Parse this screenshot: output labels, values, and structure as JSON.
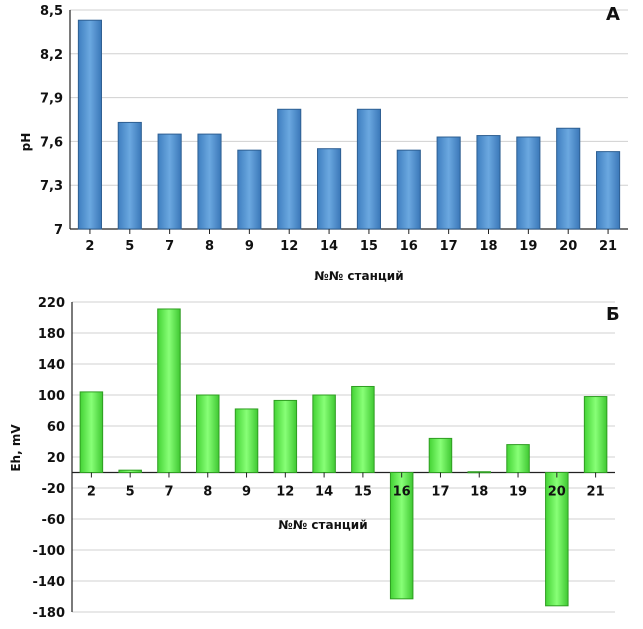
{
  "chart_data": [
    {
      "type": "bar",
      "panel": "A",
      "xlabel": "№№ станций",
      "ylabel": "pH",
      "ylim": [
        7,
        8.5
      ],
      "yticks": [
        "7",
        "7,3",
        "7,6",
        "7,9",
        "8,2",
        "8,5"
      ],
      "categories": [
        "2",
        "5",
        "7",
        "8",
        "9",
        "12",
        "14",
        "15",
        "16",
        "17",
        "18",
        "19",
        "20",
        "21"
      ],
      "values": [
        8.43,
        7.73,
        7.65,
        7.65,
        7.54,
        7.82,
        7.55,
        7.82,
        7.54,
        7.63,
        7.64,
        7.63,
        7.69,
        7.53
      ],
      "color": "#5b9bd5",
      "grid": true
    },
    {
      "type": "bar",
      "panel": "Б",
      "xlabel": "№№ станций",
      "ylabel": "Eh, mV",
      "ylim": [
        -180,
        220
      ],
      "yticks": [
        "-180",
        "-140",
        "-100",
        "-60",
        "-20",
        "20",
        "60",
        "100",
        "140",
        "180",
        "220"
      ],
      "categories": [
        "2",
        "5",
        "7",
        "8",
        "9",
        "12",
        "14",
        "15",
        "16",
        "17",
        "18",
        "19",
        "20",
        "21"
      ],
      "values": [
        104,
        3,
        211,
        100,
        82,
        93,
        100,
        111,
        -163,
        44,
        1,
        36,
        -172,
        98
      ],
      "color": "#66ee55",
      "grid": true
    }
  ]
}
